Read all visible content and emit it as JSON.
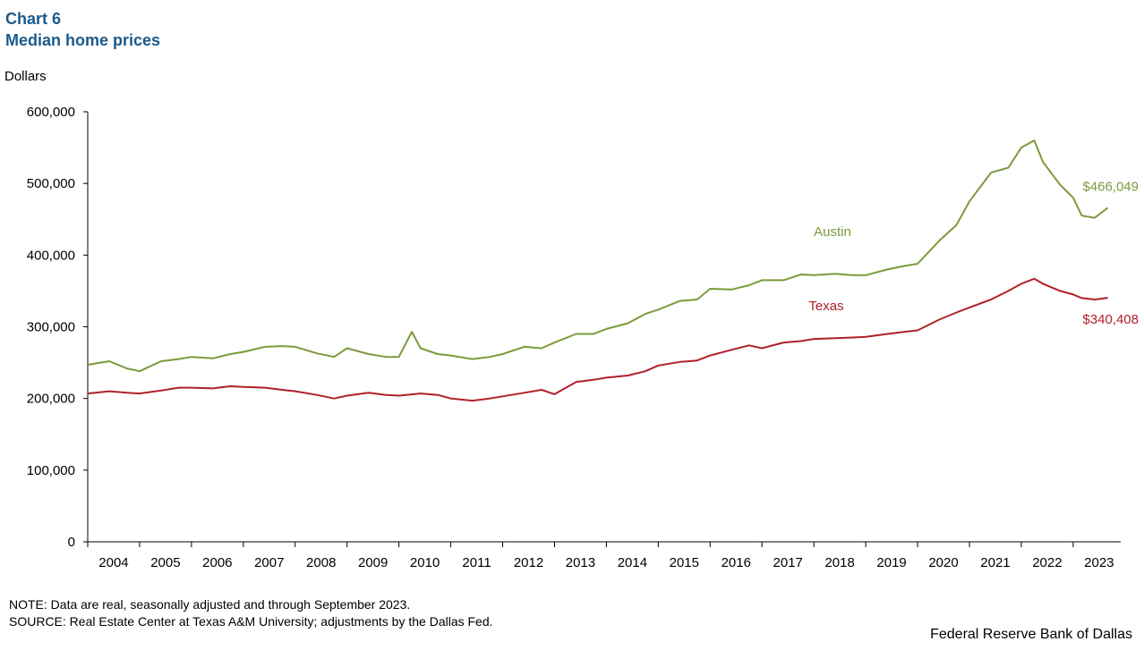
{
  "header": {
    "chart_number": "Chart 6",
    "title": "Median home prices",
    "units": "Dollars"
  },
  "footer": {
    "note": "NOTE: Data are real, seasonally adjusted and through September 2023.",
    "source": "SOURCE: Real Estate Center at Texas A&M University; adjustments by the Dallas Fed.",
    "credit": "Federal Reserve Bank of Dallas"
  },
  "chart_data": {
    "type": "line",
    "title": "Median home prices",
    "ylabel": "Dollars",
    "ylim": [
      0,
      600000
    ],
    "yticks": [
      0,
      100000,
      200000,
      300000,
      400000,
      500000,
      600000
    ],
    "ytick_labels": [
      "0",
      "100,000",
      "200,000",
      "300,000",
      "400,000",
      "500,000",
      "600,000"
    ],
    "x_range": [
      "2004-01",
      "2023-09"
    ],
    "year_labels": [
      "2004",
      "2005",
      "2006",
      "2007",
      "2008",
      "2009",
      "2010",
      "2011",
      "2012",
      "2013",
      "2014",
      "2015",
      "2016",
      "2017",
      "2018",
      "2019",
      "2020",
      "2021",
      "2022",
      "2023"
    ],
    "grid": false,
    "series": [
      {
        "name": "Austin",
        "color": "#7b9a3c",
        "end_label": "$466,049",
        "end_value": 466049,
        "points": [
          [
            "2004-01",
            247000
          ],
          [
            "2004-06",
            252000
          ],
          [
            "2004-10",
            242000
          ],
          [
            "2005-01",
            238000
          ],
          [
            "2005-06",
            252000
          ],
          [
            "2005-10",
            255000
          ],
          [
            "2006-01",
            258000
          ],
          [
            "2006-06",
            256000
          ],
          [
            "2006-10",
            262000
          ],
          [
            "2007-01",
            265000
          ],
          [
            "2007-06",
            272000
          ],
          [
            "2007-10",
            273000
          ],
          [
            "2008-01",
            272000
          ],
          [
            "2008-06",
            263000
          ],
          [
            "2008-10",
            258000
          ],
          [
            "2009-01",
            270000
          ],
          [
            "2009-06",
            262000
          ],
          [
            "2009-10",
            258000
          ],
          [
            "2010-01",
            258000
          ],
          [
            "2010-04",
            293000
          ],
          [
            "2010-06",
            270000
          ],
          [
            "2010-10",
            262000
          ],
          [
            "2011-01",
            260000
          ],
          [
            "2011-06",
            255000
          ],
          [
            "2011-10",
            258000
          ],
          [
            "2012-01",
            262000
          ],
          [
            "2012-06",
            272000
          ],
          [
            "2012-10",
            270000
          ],
          [
            "2013-01",
            278000
          ],
          [
            "2013-06",
            290000
          ],
          [
            "2013-10",
            290000
          ],
          [
            "2014-01",
            297000
          ],
          [
            "2014-06",
            305000
          ],
          [
            "2014-10",
            318000
          ],
          [
            "2015-01",
            324000
          ],
          [
            "2015-06",
            336000
          ],
          [
            "2015-10",
            338000
          ],
          [
            "2016-01",
            353000
          ],
          [
            "2016-06",
            352000
          ],
          [
            "2016-10",
            358000
          ],
          [
            "2017-01",
            365000
          ],
          [
            "2017-06",
            365000
          ],
          [
            "2017-10",
            373000
          ],
          [
            "2018-01",
            372000
          ],
          [
            "2018-06",
            374000
          ],
          [
            "2018-10",
            372000
          ],
          [
            "2019-01",
            372000
          ],
          [
            "2019-06",
            380000
          ],
          [
            "2019-10",
            385000
          ],
          [
            "2020-01",
            388000
          ],
          [
            "2020-06",
            420000
          ],
          [
            "2020-10",
            442000
          ],
          [
            "2021-01",
            475000
          ],
          [
            "2021-06",
            515000
          ],
          [
            "2021-10",
            522000
          ],
          [
            "2022-01",
            550000
          ],
          [
            "2022-04",
            560000
          ],
          [
            "2022-06",
            530000
          ],
          [
            "2022-10",
            498000
          ],
          [
            "2023-01",
            480000
          ],
          [
            "2023-03",
            455000
          ],
          [
            "2023-06",
            452000
          ],
          [
            "2023-09",
            466049
          ]
        ]
      },
      {
        "name": "Texas",
        "color": "#b0202a",
        "end_label": "$340,408",
        "end_value": 340408,
        "points": [
          [
            "2004-01",
            207000
          ],
          [
            "2004-06",
            210000
          ],
          [
            "2004-10",
            208000
          ],
          [
            "2005-01",
            207000
          ],
          [
            "2005-06",
            211000
          ],
          [
            "2005-10",
            215000
          ],
          [
            "2006-01",
            215000
          ],
          [
            "2006-06",
            214000
          ],
          [
            "2006-10",
            217000
          ],
          [
            "2007-01",
            216000
          ],
          [
            "2007-06",
            215000
          ],
          [
            "2007-10",
            212000
          ],
          [
            "2008-01",
            210000
          ],
          [
            "2008-06",
            205000
          ],
          [
            "2008-10",
            200000
          ],
          [
            "2009-01",
            204000
          ],
          [
            "2009-06",
            208000
          ],
          [
            "2009-10",
            205000
          ],
          [
            "2010-01",
            204000
          ],
          [
            "2010-06",
            207000
          ],
          [
            "2010-10",
            205000
          ],
          [
            "2011-01",
            200000
          ],
          [
            "2011-06",
            197000
          ],
          [
            "2011-10",
            200000
          ],
          [
            "2012-01",
            203000
          ],
          [
            "2012-06",
            208000
          ],
          [
            "2012-10",
            212000
          ],
          [
            "2013-01",
            206000
          ],
          [
            "2013-06",
            223000
          ],
          [
            "2013-10",
            226000
          ],
          [
            "2014-01",
            229000
          ],
          [
            "2014-06",
            232000
          ],
          [
            "2014-10",
            238000
          ],
          [
            "2015-01",
            246000
          ],
          [
            "2015-06",
            251000
          ],
          [
            "2015-10",
            253000
          ],
          [
            "2016-01",
            260000
          ],
          [
            "2016-06",
            268000
          ],
          [
            "2016-10",
            274000
          ],
          [
            "2017-01",
            270000
          ],
          [
            "2017-06",
            278000
          ],
          [
            "2017-10",
            280000
          ],
          [
            "2018-01",
            283000
          ],
          [
            "2018-06",
            284000
          ],
          [
            "2018-10",
            285000
          ],
          [
            "2019-01",
            286000
          ],
          [
            "2019-06",
            290000
          ],
          [
            "2019-10",
            293000
          ],
          [
            "2020-01",
            295000
          ],
          [
            "2020-06",
            310000
          ],
          [
            "2020-10",
            320000
          ],
          [
            "2021-01",
            327000
          ],
          [
            "2021-06",
            338000
          ],
          [
            "2021-10",
            350000
          ],
          [
            "2022-01",
            360000
          ],
          [
            "2022-04",
            367000
          ],
          [
            "2022-06",
            360000
          ],
          [
            "2022-10",
            350000
          ],
          [
            "2023-01",
            345000
          ],
          [
            "2023-03",
            340000
          ],
          [
            "2023-06",
            338000
          ],
          [
            "2023-09",
            340408
          ]
        ]
      }
    ]
  }
}
